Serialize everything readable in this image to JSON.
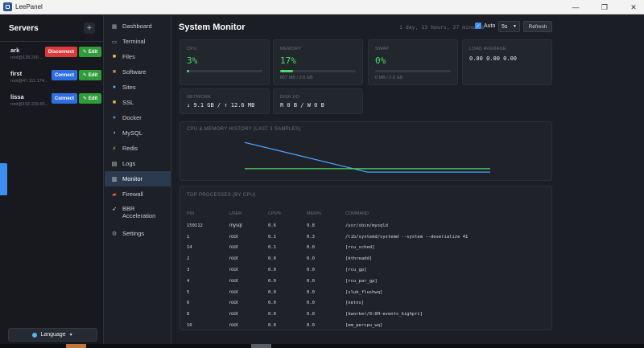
{
  "window": {
    "title": "LeePanel",
    "minimize": "—",
    "maximize": "❐",
    "close": "✕"
  },
  "servers": {
    "title": "Servers",
    "add": "+",
    "items": [
      {
        "name": "ark",
        "address": "root@139.200...",
        "action": "Disconnect",
        "edit": "Edit"
      },
      {
        "name": "first",
        "address": "root@47.111.174...",
        "action": "Connect",
        "edit": "Edit"
      },
      {
        "name": "lissa",
        "address": "root@192.229.65...",
        "action": "Connect",
        "edit": "Edit"
      }
    ],
    "language": "Language"
  },
  "nav": [
    {
      "label": "Dashboard",
      "icon": "dashboard-icon"
    },
    {
      "label": "Terminal",
      "icon": "terminal-icon"
    },
    {
      "label": "Files",
      "icon": "folder-icon"
    },
    {
      "label": "Software",
      "icon": "package-icon"
    },
    {
      "label": "Sites",
      "icon": "globe-icon"
    },
    {
      "label": "SSL",
      "icon": "lock-icon"
    },
    {
      "label": "Docker",
      "icon": "docker-icon"
    },
    {
      "label": "MySQL",
      "icon": "database-icon"
    },
    {
      "label": "Redis",
      "icon": "bolt-icon"
    },
    {
      "label": "Logs",
      "icon": "document-icon"
    },
    {
      "label": "Monitor",
      "icon": "chart-icon",
      "active": true
    },
    {
      "label": "Firewall",
      "icon": "firewall-icon"
    },
    {
      "label": "BBR",
      "label2": "Acceleration",
      "icon": "rocket-icon"
    },
    {
      "label": "Settings",
      "icon": "gear-icon"
    }
  ],
  "monitor": {
    "title": "System Monitor",
    "uptime": "1 day, 13 hours, 27 minutes",
    "auto_label": "Auto",
    "interval": "5s",
    "refresh": "Refresh",
    "cpu": {
      "label": "CPU",
      "value": "3%",
      "fraction": 0.03
    },
    "memory": {
      "label": "MEMORY",
      "value": "17%",
      "fraction": 0.17,
      "sub": "657 MB / 3.8 GB"
    },
    "swap": {
      "label": "SWAP",
      "value": "0%",
      "fraction": 0,
      "sub": "0 MB / 2.6 GB"
    },
    "load": {
      "label": "LOAD AVERAGE",
      "value": "0.00  0.00  0.00"
    },
    "network": {
      "label": "NETWORK",
      "value": "↓ 9.1 GB / ↑ 12.6 MB"
    },
    "disk": {
      "label": "DISK I/O",
      "value": "R 0 B / W 0 B"
    },
    "history_title": "CPU & MEMORY HISTORY (LAST 3 SAMPLES)",
    "processes_title": "TOP PROCESSES (BY CPU)",
    "columns": [
      "PID",
      "USER",
      "CPU%",
      "MEM%",
      "COMMAND"
    ],
    "processes": [
      [
        "150112",
        "mysql",
        "0.6",
        "9.8",
        "/usr/sbin/mysqld"
      ],
      [
        "1",
        "root",
        "0.1",
        "0.3",
        "/lib/systemd/systemd --system --deserialize 41"
      ],
      [
        "14",
        "root",
        "0.1",
        "0.0",
        "[rcu_sched]"
      ],
      [
        "2",
        "root",
        "0.0",
        "0.0",
        "[kthreadd]"
      ],
      [
        "3",
        "root",
        "0.0",
        "0.0",
        "[rcu_gp]"
      ],
      [
        "4",
        "root",
        "0.0",
        "0.0",
        "[rcu_par_gp]"
      ],
      [
        "5",
        "root",
        "0.0",
        "0.0",
        "[slub_flushwq]"
      ],
      [
        "6",
        "root",
        "0.0",
        "0.0",
        "[netns]"
      ],
      [
        "8",
        "root",
        "0.0",
        "0.0",
        "[kworker/0:0H-events_highpri]"
      ],
      [
        "10",
        "root",
        "0.0",
        "0.0",
        "[mm_percpu_wq]"
      ]
    ]
  },
  "chart_data": {
    "type": "line",
    "title": "CPU & MEMORY HISTORY (LAST 3 SAMPLES)",
    "x": [
      1,
      2,
      3
    ],
    "ylim": [
      0,
      100
    ],
    "series": [
      {
        "values": [
          85,
          8,
          8
        ],
        "color": "#4a9eff"
      },
      {
        "values": [
          17,
          17,
          17
        ],
        "color": "#4cd964"
      }
    ]
  },
  "colors": {
    "accent": "#3d8ef0",
    "green": "#4cd964",
    "danger": "#d93a3a",
    "edit": "#2f9b3a"
  }
}
